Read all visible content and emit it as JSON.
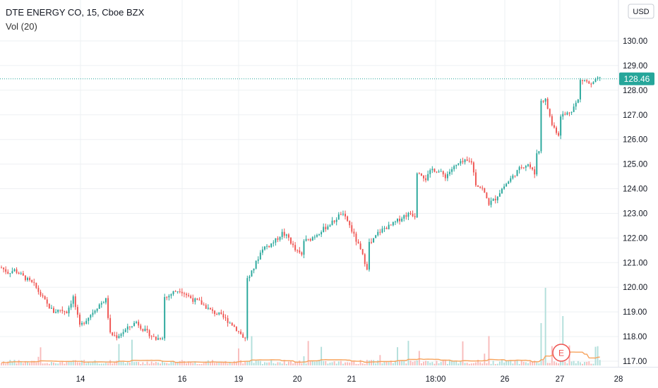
{
  "header": {
    "symbol_line": "DTE ENERGY CO, 15, Cboe BZX",
    "indicator_line": "Vol (20)"
  },
  "currency_button": {
    "label": "USD"
  },
  "last_price": {
    "value": 128.46,
    "label": "128.46"
  },
  "earnings_marker": {
    "label": "E",
    "date": "27"
  },
  "colors": {
    "up": "#26a69a",
    "down": "#ef5350",
    "vol_up": "#b2dfdb",
    "vol_down": "#f8bbbb",
    "vol_ma": "#f7a35c",
    "price_line": "#26a69a",
    "grid": "#eef0f3"
  },
  "chart_data": {
    "type": "candlestick",
    "y_ticks": [
      "130.00",
      "129.00",
      "128.00",
      "127.00",
      "126.00",
      "125.00",
      "124.00",
      "123.00",
      "122.00",
      "121.00",
      "120.00",
      "119.00",
      "118.00",
      "117.00"
    ],
    "x_ticks": [
      "14",
      "16",
      "19",
      "20",
      "21",
      "18:00",
      "26",
      "27",
      "28"
    ],
    "ylim": [
      116.8,
      131.3
    ],
    "session_price_path": [
      [
        0,
        120.8
      ],
      [
        3,
        120.6
      ],
      [
        6,
        120.7
      ],
      [
        9,
        120.5
      ],
      [
        12,
        120.3
      ],
      [
        15,
        120.1
      ],
      [
        18,
        119.7
      ],
      [
        21,
        119.3
      ],
      [
        24,
        119.0
      ],
      [
        27,
        119.1
      ],
      [
        30,
        119.0
      ],
      [
        33,
        119.6
      ],
      [
        36,
        118.4
      ],
      [
        39,
        118.7
      ],
      [
        42,
        119.0
      ],
      [
        45,
        119.3
      ],
      [
        48,
        119.5
      ],
      [
        50,
        118.1
      ],
      [
        53,
        118.0
      ],
      [
        56,
        118.2
      ],
      [
        59,
        118.4
      ],
      [
        62,
        118.6
      ],
      [
        65,
        118.3
      ],
      [
        68,
        118.1
      ],
      [
        71,
        117.9
      ],
      [
        74,
        118.0
      ],
      [
        76,
        119.6
      ],
      [
        79,
        119.8
      ],
      [
        82,
        119.9
      ],
      [
        85,
        119.7
      ],
      [
        88,
        119.5
      ],
      [
        91,
        119.4
      ],
      [
        94,
        119.2
      ],
      [
        97,
        119.0
      ],
      [
        100,
        118.9
      ],
      [
        103,
        118.7
      ],
      [
        106,
        118.5
      ],
      [
        109,
        118.2
      ],
      [
        112,
        117.9
      ],
      [
        114,
        120.4
      ],
      [
        117,
        121.0
      ],
      [
        120,
        121.6
      ],
      [
        123,
        121.7
      ],
      [
        126,
        121.9
      ],
      [
        129,
        122.2
      ],
      [
        132,
        122.0
      ],
      [
        135,
        121.5
      ],
      [
        138,
        121.3
      ],
      [
        141,
        121.9
      ],
      [
        144,
        122.1
      ],
      [
        147,
        122.3
      ],
      [
        150,
        122.5
      ],
      [
        153,
        122.7
      ],
      [
        156,
        123.0
      ],
      [
        159,
        122.7
      ],
      [
        162,
        122.1
      ],
      [
        165,
        121.5
      ],
      [
        168,
        120.8
      ],
      [
        170,
        121.8
      ],
      [
        173,
        122.2
      ],
      [
        176,
        122.4
      ],
      [
        179,
        122.5
      ],
      [
        182,
        122.7
      ],
      [
        185,
        122.9
      ],
      [
        188,
        123.0
      ],
      [
        190,
        122.9
      ],
      [
        192,
        124.7
      ],
      [
        195,
        124.4
      ],
      [
        198,
        124.8
      ],
      [
        201,
        124.7
      ],
      [
        204,
        124.5
      ],
      [
        207,
        124.8
      ],
      [
        210,
        125.0
      ],
      [
        213,
        125.1
      ],
      [
        216,
        125.1
      ],
      [
        218,
        124.2
      ],
      [
        221,
        124.0
      ],
      [
        224,
        123.4
      ],
      [
        227,
        123.6
      ],
      [
        230,
        124.0
      ],
      [
        233,
        124.3
      ],
      [
        236,
        124.6
      ],
      [
        239,
        124.9
      ],
      [
        242,
        125.0
      ],
      [
        245,
        124.6
      ],
      [
        247,
        125.5
      ],
      [
        250,
        127.6
      ],
      [
        253,
        126.6
      ],
      [
        256,
        126.2
      ],
      [
        259,
        127.0
      ],
      [
        262,
        127.2
      ],
      [
        265,
        127.6
      ],
      [
        268,
        128.4
      ],
      [
        271,
        128.2
      ],
      [
        274,
        128.46
      ]
    ]
  }
}
